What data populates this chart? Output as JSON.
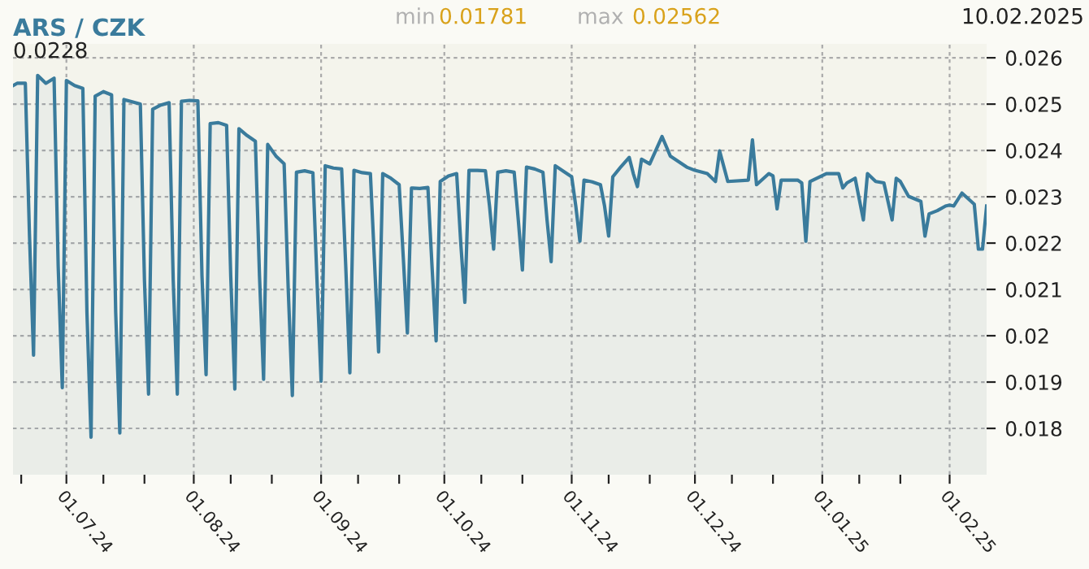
{
  "chart_data": {
    "type": "area",
    "title": "ARS / CZK",
    "annotations": [
      "min",
      "0.01781",
      "max",
      "0.02562",
      "10.02.2025",
      "0.0228"
    ],
    "x": [
      "2024-06-18",
      "2024-06-19",
      "2024-06-21",
      "2024-06-22",
      "2024-06-23",
      "2024-06-24",
      "2024-06-26",
      "2024-06-28",
      "2024-06-29",
      "2024-06-30",
      "2024-07-01",
      "2024-07-03",
      "2024-07-05",
      "2024-07-06",
      "2024-07-07",
      "2024-07-08",
      "2024-07-10",
      "2024-07-12",
      "2024-07-13",
      "2024-07-14",
      "2024-07-15",
      "2024-07-17",
      "2024-07-19",
      "2024-07-20",
      "2024-07-21",
      "2024-07-22",
      "2024-07-24",
      "2024-07-26",
      "2024-07-27",
      "2024-07-28",
      "2024-07-29",
      "2024-07-31",
      "2024-08-02",
      "2024-08-03",
      "2024-08-04",
      "2024-08-05",
      "2024-08-07",
      "2024-08-09",
      "2024-08-10",
      "2024-08-11",
      "2024-08-12",
      "2024-08-14",
      "2024-08-16",
      "2024-08-17",
      "2024-08-18",
      "2024-08-19",
      "2024-08-21",
      "2024-08-23",
      "2024-08-24",
      "2024-08-25",
      "2024-08-26",
      "2024-08-28",
      "2024-08-30",
      "2024-08-31",
      "2024-09-01",
      "2024-09-02",
      "2024-09-04",
      "2024-09-06",
      "2024-09-07",
      "2024-09-08",
      "2024-09-09",
      "2024-09-11",
      "2024-09-13",
      "2024-09-14",
      "2024-09-15",
      "2024-09-16",
      "2024-09-18",
      "2024-09-20",
      "2024-09-21",
      "2024-09-22",
      "2024-09-23",
      "2024-09-25",
      "2024-09-27",
      "2024-09-28",
      "2024-09-29",
      "2024-09-30",
      "2024-10-02",
      "2024-10-04",
      "2024-10-05",
      "2024-10-06",
      "2024-10-07",
      "2024-10-09",
      "2024-10-11",
      "2024-10-12",
      "2024-10-13",
      "2024-10-14",
      "2024-10-16",
      "2024-10-18",
      "2024-10-19",
      "2024-10-20",
      "2024-10-21",
      "2024-10-23",
      "2024-10-25",
      "2024-10-26",
      "2024-10-27",
      "2024-10-28",
      "2024-10-30",
      "2024-11-01",
      "2024-11-02",
      "2024-11-03",
      "2024-11-04",
      "2024-11-06",
      "2024-11-08",
      "2024-11-09",
      "2024-11-10",
      "2024-11-11",
      "2024-11-13",
      "2024-11-15",
      "2024-11-16",
      "2024-11-17",
      "2024-11-18",
      "2024-11-20",
      "2024-11-23",
      "2024-11-25",
      "2024-11-29",
      "2024-12-01",
      "2024-12-04",
      "2024-12-06",
      "2024-12-07",
      "2024-12-09",
      "2024-12-14",
      "2024-12-15",
      "2024-12-16",
      "2024-12-19",
      "2024-12-20",
      "2024-12-21",
      "2024-12-22",
      "2024-12-26",
      "2024-12-27",
      "2024-12-28",
      "2024-12-29",
      "2025-01-02",
      "2025-01-05",
      "2025-01-06",
      "2025-01-07",
      "2025-01-09",
      "2025-01-11",
      "2025-01-12",
      "2025-01-14",
      "2025-01-16",
      "2025-01-18",
      "2025-01-19",
      "2025-01-20",
      "2025-01-22",
      "2025-01-25",
      "2025-01-26",
      "2025-01-27",
      "2025-01-29",
      "2025-01-31",
      "2025-02-01",
      "2025-02-02",
      "2025-02-04",
      "2025-02-07",
      "2025-02-08",
      "2025-02-09",
      "2025-02-10"
    ],
    "series": [
      {
        "color": "#3a7b9c",
        "values": [
          0.0254,
          0.02545,
          0.02545,
          0.0222,
          0.01958,
          0.02562,
          0.02545,
          0.02556,
          0.0215,
          0.01888,
          0.02551,
          0.0254,
          0.02534,
          0.0205,
          0.01781,
          0.02517,
          0.02527,
          0.0252,
          0.0205,
          0.0179,
          0.0251,
          0.02505,
          0.025,
          0.0212,
          0.01874,
          0.02489,
          0.02498,
          0.02503,
          0.0212,
          0.01874,
          0.02506,
          0.02508,
          0.02507,
          0.0213,
          0.01916,
          0.02458,
          0.0246,
          0.02454,
          0.0213,
          0.01885,
          0.02447,
          0.02432,
          0.0242,
          0.0213,
          0.01906,
          0.02413,
          0.02388,
          0.02371,
          0.021,
          0.01871,
          0.02353,
          0.02356,
          0.02352,
          0.0212,
          0.01902,
          0.02367,
          0.02362,
          0.0236,
          0.0215,
          0.0192,
          0.02357,
          0.02352,
          0.0235,
          0.0216,
          0.01965,
          0.0235,
          0.0234,
          0.02326,
          0.0217,
          0.02006,
          0.02319,
          0.02318,
          0.0232,
          0.0215,
          0.01989,
          0.02333,
          0.02345,
          0.0235,
          0.022,
          0.02072,
          0.02357,
          0.02357,
          0.02356,
          0.0228,
          0.02187,
          0.02353,
          0.02356,
          0.02353,
          0.0225,
          0.02142,
          0.02364,
          0.0236,
          0.02353,
          0.0225,
          0.0216,
          0.02367,
          0.02355,
          0.02343,
          0.0228,
          0.02204,
          0.02336,
          0.02332,
          0.02326,
          0.0228,
          0.02215,
          0.02343,
          0.02365,
          0.02385,
          0.0235,
          0.02322,
          0.02381,
          0.02371,
          0.0243,
          0.02388,
          0.02364,
          0.02357,
          0.0235,
          0.02333,
          0.02399,
          0.02333,
          0.02336,
          0.02423,
          0.02326,
          0.0235,
          0.02345,
          0.02274,
          0.02336,
          0.02336,
          0.0233,
          0.02204,
          0.02333,
          0.0235,
          0.0235,
          0.02319,
          0.0233,
          0.0234,
          0.0225,
          0.0235,
          0.02333,
          0.0233,
          0.0225,
          0.0234,
          0.02333,
          0.02301,
          0.0229,
          0.02215,
          0.02263,
          0.0227,
          0.0228,
          0.02282,
          0.0228,
          0.02308,
          0.02284,
          0.02187,
          0.02187,
          0.0228
        ]
      }
    ],
    "xlim": [
      "2024-06-18",
      "2025-02-10"
    ],
    "xticks": [
      {
        "value": "2024-06-20",
        "label": null
      },
      {
        "value": "2024-07-01",
        "label": "01.07.24"
      },
      {
        "value": "2024-07-10",
        "label": null
      },
      {
        "value": "2024-07-20",
        "label": null
      },
      {
        "value": "2024-08-01",
        "label": "01.08.24"
      },
      {
        "value": "2024-08-10",
        "label": null
      },
      {
        "value": "2024-08-20",
        "label": null
      },
      {
        "value": "2024-09-01",
        "label": "01.09.24"
      },
      {
        "value": "2024-09-10",
        "label": null
      },
      {
        "value": "2024-09-20",
        "label": null
      },
      {
        "value": "2024-10-01",
        "label": "01.10.24"
      },
      {
        "value": "2024-10-10",
        "label": null
      },
      {
        "value": "2024-10-20",
        "label": null
      },
      {
        "value": "2024-11-01",
        "label": "01.11.24"
      },
      {
        "value": "2024-11-10",
        "label": null
      },
      {
        "value": "2024-11-20",
        "label": null
      },
      {
        "value": "2024-12-01",
        "label": "01.12.24"
      },
      {
        "value": "2024-12-10",
        "label": null
      },
      {
        "value": "2024-12-20",
        "label": null
      },
      {
        "value": "2025-01-01",
        "label": "01.01.25"
      },
      {
        "value": "2025-01-10",
        "label": null
      },
      {
        "value": "2025-01-20",
        "label": null
      },
      {
        "value": "2025-02-01",
        "label": "01.02.25"
      }
    ],
    "ylim": [
      0.017,
      0.0263
    ],
    "yticks": [
      0.018,
      0.019,
      0.02,
      0.021,
      0.022,
      0.023,
      0.024,
      0.025,
      0.026
    ],
    "grid": true
  }
}
